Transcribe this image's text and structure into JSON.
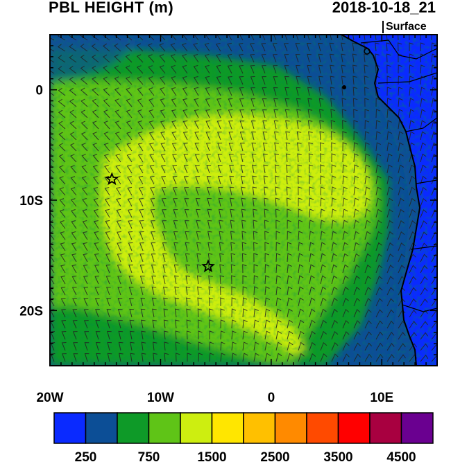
{
  "header": {
    "title": "PBL HEIGHT (m)",
    "datetime": "2018-10-18_21",
    "level": "Surface"
  },
  "axes": {
    "lat_labels": [
      {
        "text": "0",
        "lat": 0
      },
      {
        "text": "10S",
        "lat": -10
      },
      {
        "text": "20S",
        "lat": -20
      }
    ],
    "lon_labels": [
      {
        "text": "20W",
        "lon": -20
      },
      {
        "text": "10W",
        "lon": -10
      },
      {
        "text": "0",
        "lon": 0
      },
      {
        "text": "10E",
        "lon": 10
      }
    ],
    "lon_range": [
      -20,
      15
    ],
    "lat_range": [
      -25,
      5
    ]
  },
  "markers": [
    {
      "name": "star-marker-1",
      "lon": -14.4,
      "lat": -8.1
    },
    {
      "name": "star-marker-2",
      "lon": -5.7,
      "lat": -16.0
    }
  ],
  "colorbar": {
    "colors": [
      "#0a2aff",
      "#0c4e96",
      "#0e9a28",
      "#5fc417",
      "#cdee10",
      "#ffe600",
      "#ffc000",
      "#ff8a00",
      "#ff4a00",
      "#ff0000",
      "#a80040",
      "#6a0090"
    ],
    "labels": [
      "250",
      "750",
      "1500",
      "2500",
      "3500",
      "4500"
    ]
  }
}
